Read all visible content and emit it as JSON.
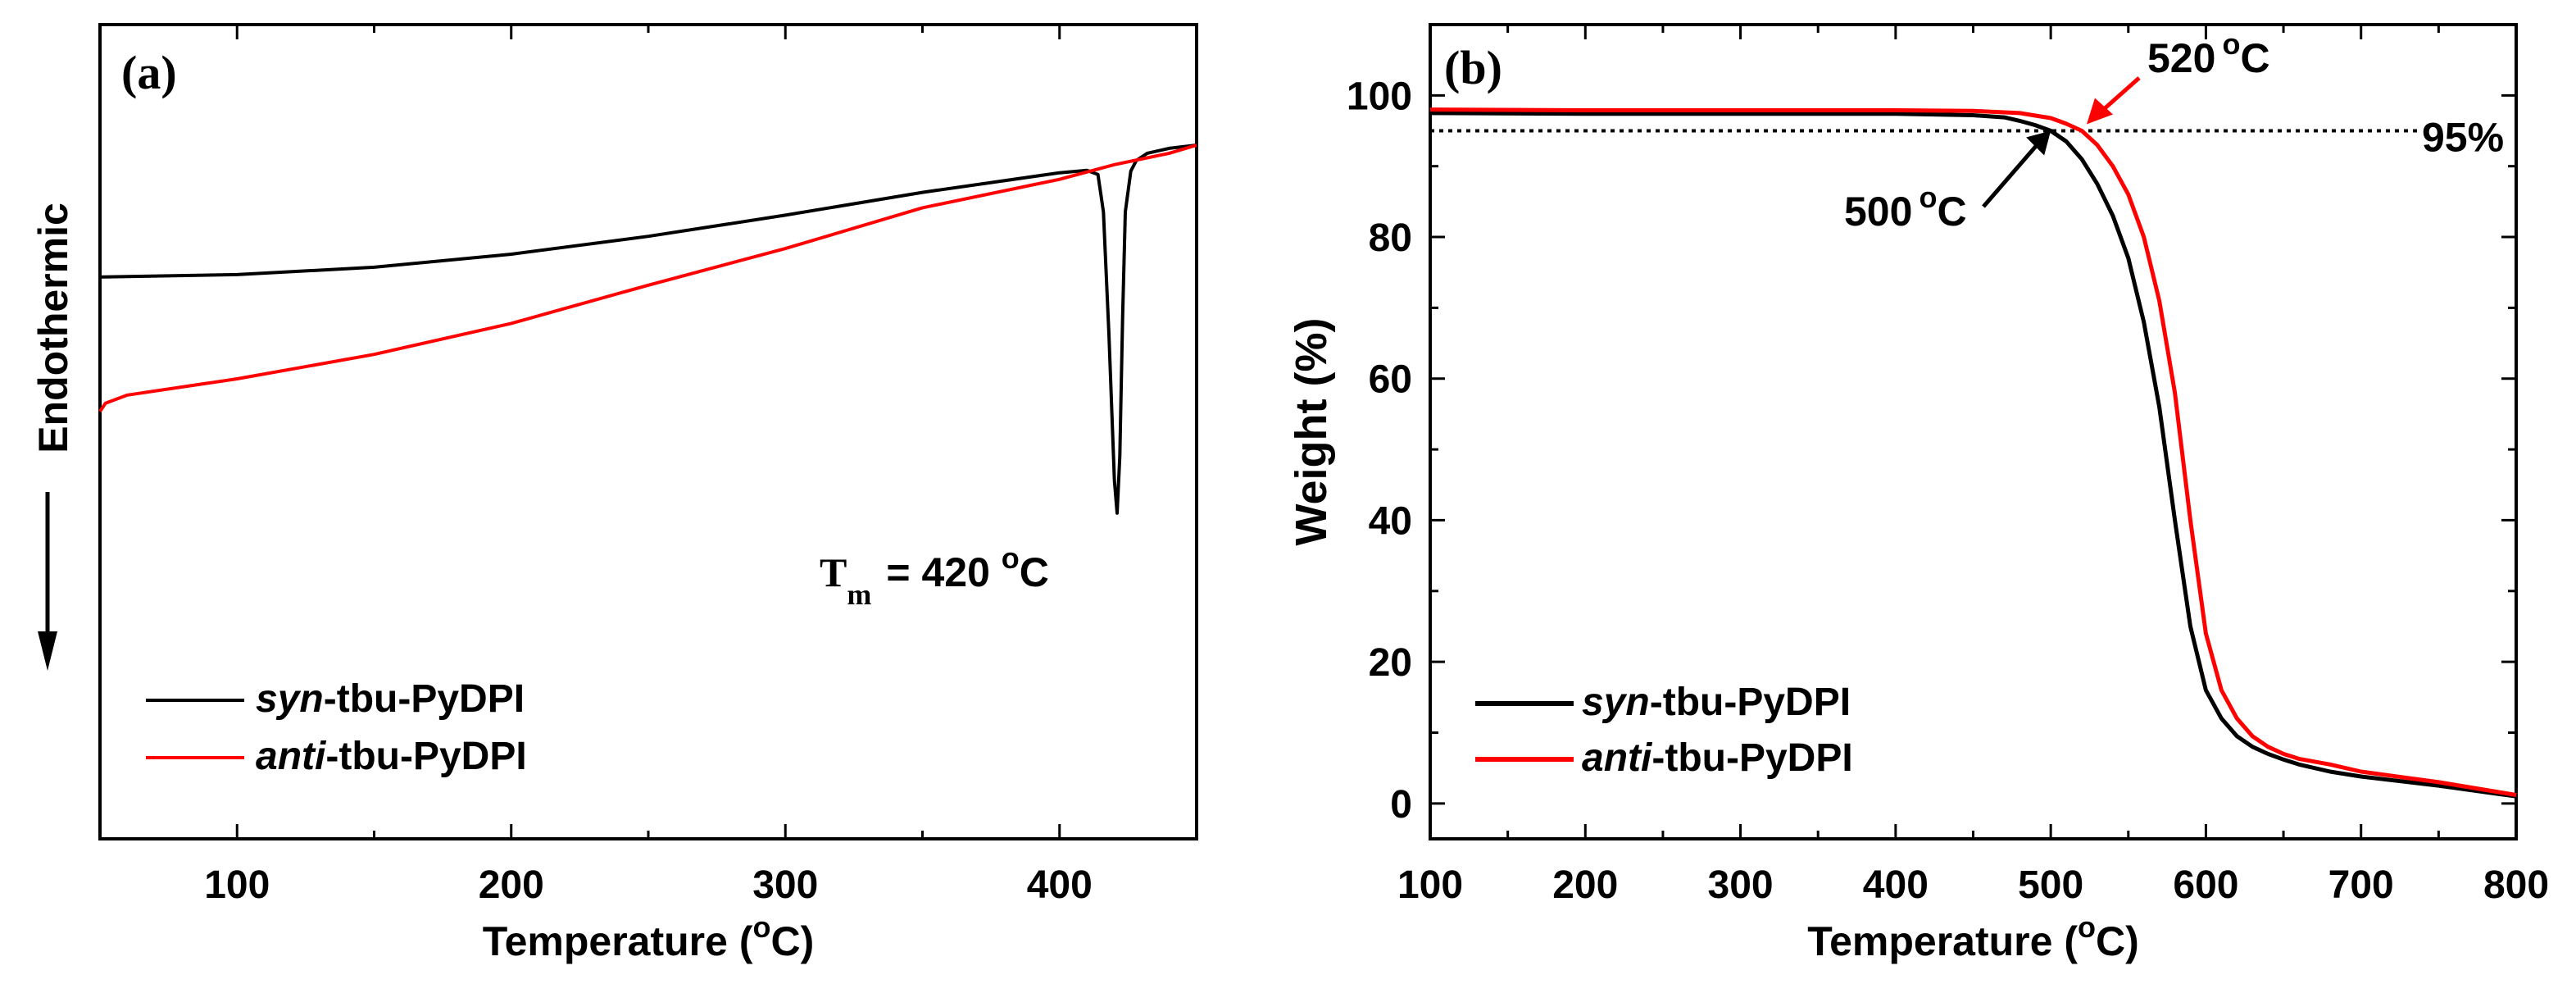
{
  "chart_data": [
    {
      "id": "a",
      "type": "line",
      "panel_label": "(a)",
      "title": "",
      "xlabel": "Temperature",
      "xunit": "C",
      "ylabel": "Endothermic",
      "xlim": [
        50,
        450
      ],
      "ylim": [
        0,
        100
      ],
      "y_axis_ticks_shown": false,
      "xticks": [
        100,
        200,
        300,
        400
      ],
      "annotation": {
        "text_main": "T",
        "text_sub": "m",
        "text_value": "= 420",
        "text_unit": "C"
      },
      "series": [
        {
          "name": "syn",
          "label_italic": "syn",
          "label_rest": "-tbu-PyDPI",
          "color": "#000000",
          "x": [
            50,
            100,
            150,
            200,
            250,
            300,
            350,
            400,
            410,
            414,
            416,
            418,
            420,
            421,
            422,
            423,
            424,
            426,
            428,
            432,
            440,
            450
          ],
          "y": [
            69.0,
            69.3,
            70.2,
            71.8,
            74.0,
            76.6,
            79.4,
            81.8,
            82.1,
            81.6,
            77.0,
            62.0,
            44.0,
            40.0,
            47.0,
            64.0,
            77.0,
            82.0,
            83.3,
            84.2,
            84.8,
            85.2
          ]
        },
        {
          "name": "anti",
          "label_italic": "anti",
          "label_rest": "-tbu-PyDPI",
          "color": "#ff0000",
          "x": [
            50,
            52,
            60,
            100,
            150,
            200,
            250,
            300,
            350,
            400,
            420,
            440,
            450
          ],
          "y": [
            52.5,
            53.5,
            54.5,
            56.5,
            59.5,
            63.3,
            68.0,
            72.5,
            77.5,
            81.0,
            82.8,
            84.2,
            85.2
          ]
        }
      ]
    },
    {
      "id": "b",
      "type": "line",
      "panel_label": "(b)",
      "title": "",
      "xlabel": "Temperature",
      "xunit": "C",
      "ylabel": "Weight (%)",
      "xlim": [
        100,
        800
      ],
      "ylim": [
        -5,
        110
      ],
      "xticks": [
        100,
        200,
        300,
        400,
        500,
        600,
        700,
        800
      ],
      "yticks": [
        0,
        20,
        40,
        60,
        80,
        100
      ],
      "reference_line": {
        "y": 95,
        "label": "95%"
      },
      "annotations": [
        {
          "value": "500",
          "unit": "C",
          "color": "#000000",
          "x": 500,
          "y": 95
        },
        {
          "value": "520",
          "unit": "C",
          "color": "#ff0000",
          "x": 520,
          "y": 95
        }
      ],
      "series": [
        {
          "name": "syn",
          "label_italic": "syn",
          "label_rest": "-tbu-PyDPI",
          "color": "#000000",
          "x": [
            100,
            200,
            300,
            400,
            450,
            470,
            480,
            490,
            500,
            510,
            520,
            530,
            540,
            550,
            560,
            570,
            580,
            590,
            600,
            610,
            620,
            630,
            640,
            650,
            660,
            680,
            700,
            750,
            800
          ],
          "y": [
            97.5,
            97.4,
            97.4,
            97.4,
            97.2,
            96.9,
            96.4,
            95.8,
            95.0,
            93.5,
            91.0,
            87.5,
            83.0,
            77.0,
            68.0,
            56.0,
            40.0,
            25.0,
            16.0,
            12.0,
            9.5,
            8.0,
            7.0,
            6.2,
            5.5,
            4.5,
            3.8,
            2.5,
            1.0
          ]
        },
        {
          "name": "anti",
          "label_italic": "anti",
          "label_rest": "-tbu-PyDPI",
          "color": "#ff0000",
          "x": [
            100,
            200,
            300,
            400,
            450,
            480,
            500,
            510,
            520,
            530,
            540,
            550,
            560,
            570,
            580,
            590,
            600,
            610,
            620,
            630,
            640,
            650,
            660,
            680,
            700,
            750,
            800
          ],
          "y": [
            98.0,
            97.9,
            97.9,
            97.9,
            97.8,
            97.5,
            96.8,
            96.0,
            95.0,
            93.0,
            90.0,
            86.0,
            80.0,
            71.0,
            58.0,
            40.0,
            24.0,
            16.0,
            12.0,
            9.5,
            8.0,
            7.0,
            6.3,
            5.5,
            4.5,
            3.0,
            1.2
          ]
        }
      ]
    }
  ]
}
